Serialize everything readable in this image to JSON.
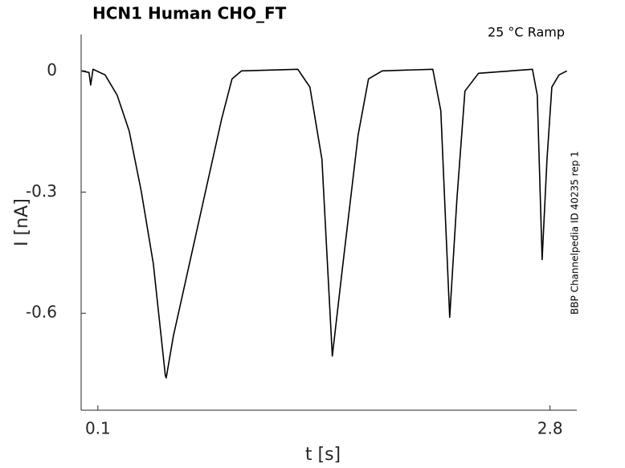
{
  "chart_data": {
    "type": "line",
    "title": "HCN1  Human  CHO_FT",
    "annotation": "25 °C  Ramp",
    "side_note": "BBP Channelpedia ID 40235 rep 1",
    "x_label": "t [s]",
    "y_label": "I [nA]",
    "x": [
      0.004,
      0.047,
      0.057,
      0.071,
      0.143,
      0.215,
      0.287,
      0.359,
      0.431,
      0.503,
      0.508,
      0.551,
      0.647,
      0.743,
      0.839,
      0.901,
      0.958,
      1.294,
      1.366,
      1.438,
      1.5,
      1.558,
      1.654,
      1.716,
      1.798,
      2.1,
      2.148,
      2.201,
      2.244,
      2.292,
      2.373,
      2.695,
      2.724,
      2.753,
      2.782,
      2.811,
      2.854,
      2.901
    ],
    "series": [
      {
        "color": "#000000",
        "values": [
          0,
          -0.004,
          -0.035,
          0.004,
          -0.01,
          -0.06,
          -0.149,
          -0.298,
          -0.477,
          -0.755,
          -0.76,
          -0.656,
          -0.477,
          -0.298,
          -0.119,
          -0.02,
          0,
          0.004,
          -0.04,
          -0.219,
          -0.706,
          -0.497,
          -0.159,
          -0.02,
          0,
          0.004,
          -0.099,
          -0.61,
          -0.318,
          -0.05,
          -0.006,
          0.004,
          -0.06,
          -0.467,
          -0.219,
          -0.04,
          -0.01,
          0
        ]
      }
    ],
    "xlim": [
      0,
      2.96
    ],
    "xticks": [
      0.1,
      2.8
    ],
    "ylim": [
      -0.84,
      0.09
    ],
    "yticks": [
      -0.6,
      -0.3,
      0
    ],
    "grid": false
  }
}
